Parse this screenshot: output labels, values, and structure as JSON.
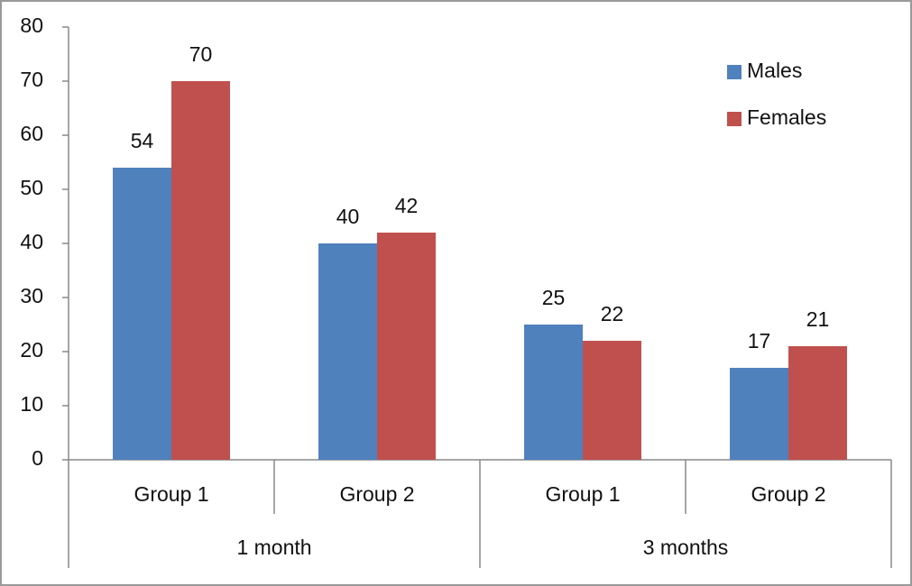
{
  "chart_data": {
    "type": "bar",
    "groups": [
      {
        "label": "1 month",
        "categories": [
          "Group 1",
          "Group 2"
        ]
      },
      {
        "label": "3 months",
        "categories": [
          "Group 1",
          "Group 2"
        ]
      }
    ],
    "series": [
      {
        "name": "Males",
        "color": "#4f81bd",
        "values": [
          54,
          40,
          25,
          17
        ]
      },
      {
        "name": "Females",
        "color": "#c0504d",
        "values": [
          70,
          42,
          22,
          21
        ]
      }
    ],
    "ylim": [
      0,
      80
    ],
    "yticks": [
      0,
      10,
      20,
      30,
      40,
      50,
      60,
      70,
      80
    ],
    "grid": false,
    "legend": "top-right"
  }
}
